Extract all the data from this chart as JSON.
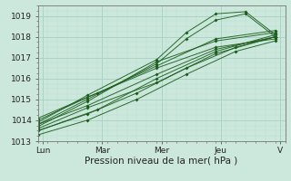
{
  "title": "",
  "xlabel": "Pression niveau de la mer( hPa )",
  "ylabel": "",
  "ylim": [
    1013.0,
    1019.5
  ],
  "yticks": [
    1013,
    1014,
    1015,
    1016,
    1017,
    1018,
    1019
  ],
  "xlim": [
    0,
    100
  ],
  "xtick_positions": [
    2,
    26,
    50,
    74,
    98
  ],
  "xtick_labels": [
    "Lun",
    "Mar",
    "Mer",
    "Jeu",
    "V"
  ],
  "bg_color": "#cce8dc",
  "plot_bg_color": "#cce8dc",
  "grid_major_color": "#aad4c4",
  "grid_minor_color": "#b8ddd0",
  "line_color": "#1a5c1a",
  "tick_fontsize": 6.5,
  "xlabel_fontsize": 7.5
}
